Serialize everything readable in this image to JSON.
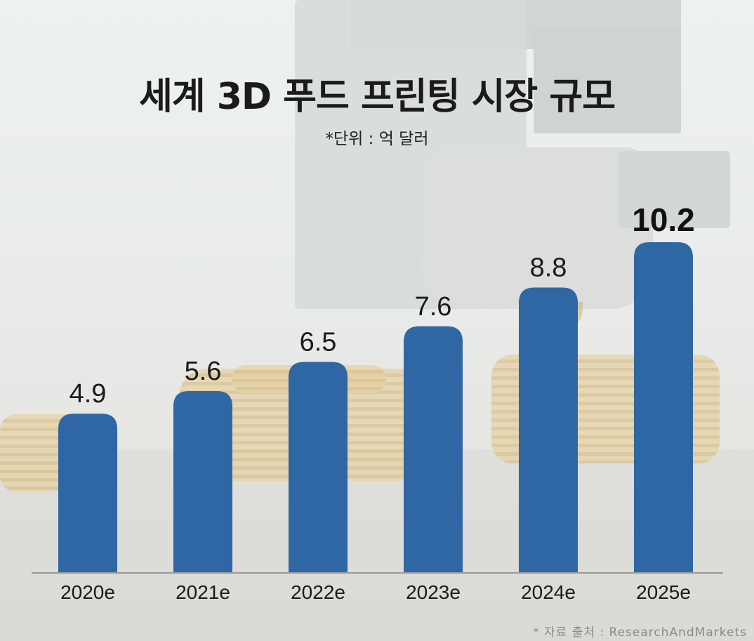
{
  "title": "세계 3D 푸드 프린팅 시장 규모",
  "subtitle": "*단위 : 억 달러",
  "source": "* 자료 출처 : ResearchAndMarkets",
  "colors": {
    "bar": "#2e67a3",
    "text": "#1b1b1b",
    "highlight_label": "#111111"
  },
  "chart_data": {
    "type": "bar",
    "categories": [
      "2020e",
      "2021e",
      "2022e",
      "2023e",
      "2024e",
      "2025e"
    ],
    "values": [
      4.9,
      5.6,
      6.5,
      7.6,
      8.8,
      10.2
    ],
    "value_labels": [
      "4.9",
      "5.6",
      "6.5",
      "7.6",
      "8.8",
      "10.2"
    ],
    "highlight_index": 5,
    "title": "세계 3D 푸드 프린팅 시장 규모",
    "xlabel": "",
    "ylabel": "",
    "unit": "*단위 : 억 달러",
    "ylim": [
      0,
      10.2
    ],
    "grid": false,
    "legend": "none"
  }
}
